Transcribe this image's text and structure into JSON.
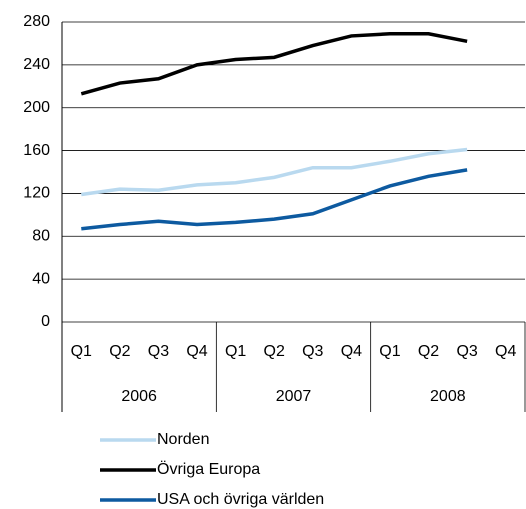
{
  "chart_data": {
    "type": "line",
    "categories": [
      "Q1",
      "Q2",
      "Q3",
      "Q4",
      "Q1",
      "Q2",
      "Q3",
      "Q4",
      "Q1",
      "Q2",
      "Q3",
      "Q4"
    ],
    "groups": [
      {
        "label": "2006",
        "span": 4
      },
      {
        "label": "2007",
        "span": 4
      },
      {
        "label": "2008",
        "span": 4
      }
    ],
    "series": [
      {
        "name": "Norden",
        "color": "#b9d9ef",
        "values": [
          119,
          124,
          123,
          128,
          130,
          135,
          144,
          144,
          150,
          157,
          161,
          null
        ]
      },
      {
        "name": "Övriga Europa",
        "color": "#000000",
        "values": [
          213,
          223,
          227,
          240,
          245,
          247,
          258,
          267,
          269,
          269,
          262,
          null
        ]
      },
      {
        "name": "USA och övriga världen",
        "color": "#0d5aa0",
        "values": [
          87,
          91,
          94,
          91,
          93,
          96,
          101,
          114,
          127,
          136,
          142,
          null
        ]
      }
    ],
    "ylim": [
      0,
      280
    ],
    "yticks": [
      0,
      40,
      80,
      120,
      160,
      200,
      240,
      280
    ],
    "grid": true,
    "legend": "bottom"
  }
}
